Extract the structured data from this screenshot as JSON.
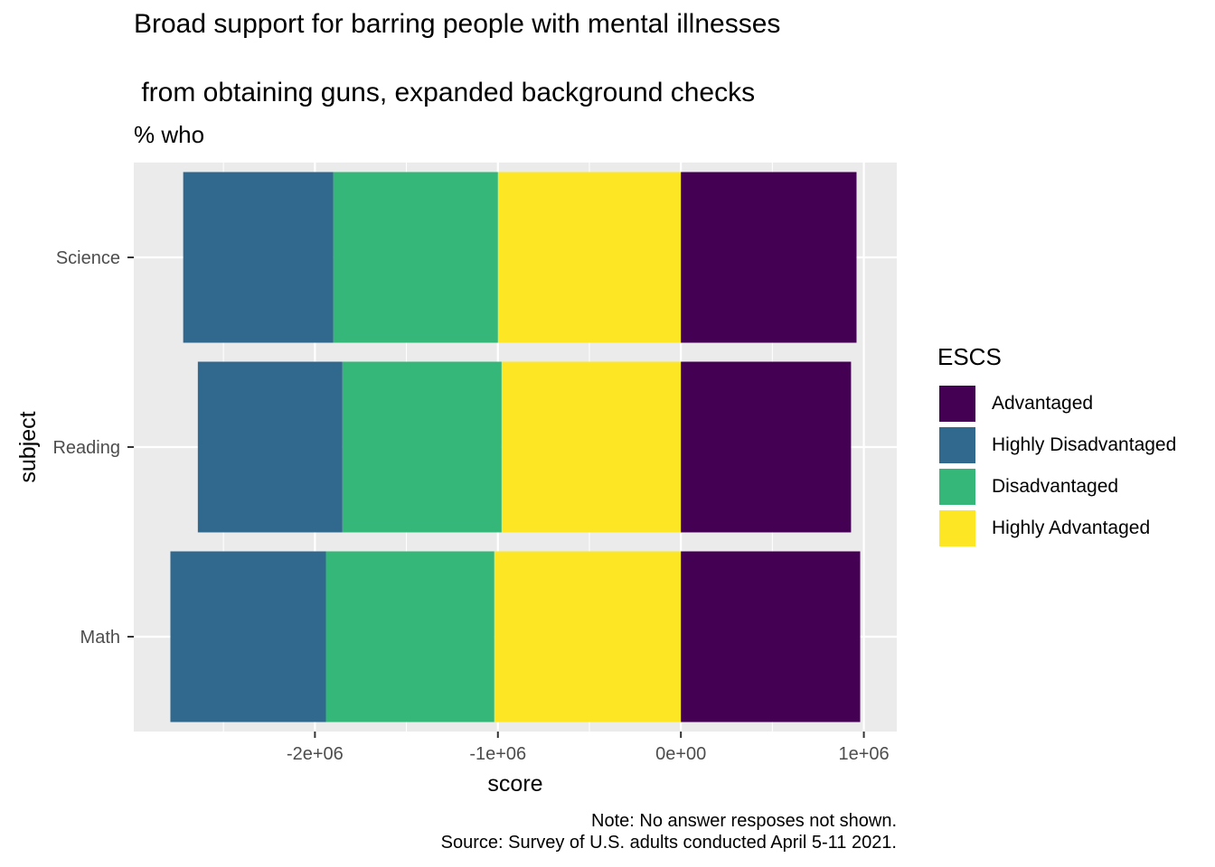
{
  "chart_data": {
    "type": "bar",
    "orientation": "horizontal",
    "stacked": "diverging",
    "title_lines": [
      "Broad support for barring people with mental illnesses",
      " from obtaining guns, expanded background checks"
    ],
    "subtitle": "% who",
    "xlabel": "score",
    "ylabel": "subject",
    "categories": [
      "Math",
      "Reading",
      "Science"
    ],
    "xlim": [
      -2990000,
      1180000
    ],
    "x_ticks": [
      {
        "value": -2000000,
        "label": "-2e+06"
      },
      {
        "value": -1000000,
        "label": "-1e+06"
      },
      {
        "value": 0,
        "label": "0e+00"
      },
      {
        "value": 1000000,
        "label": "1e+06"
      }
    ],
    "series": [
      {
        "name": "Advantaged",
        "color": "#440154",
        "values": [
          980000,
          930000,
          960000
        ]
      },
      {
        "name": "Highly Disadvantaged",
        "color": "#31688E",
        "values": [
          -850000,
          -790000,
          -820000
        ]
      },
      {
        "name": "Disadvantaged",
        "color": "#35B779",
        "values": [
          -920000,
          -870000,
          -900000
        ]
      },
      {
        "name": "Highly Advantaged",
        "color": "#FDE725",
        "values": [
          -1020000,
          -980000,
          -1000000
        ]
      }
    ],
    "stack_order_from_zero": [
      "Highly Advantaged",
      "Disadvantaged",
      "Highly Disadvantaged"
    ],
    "grid": true,
    "panel_background": "#EBEBEB",
    "legend": {
      "title": "ESCS",
      "position": "right"
    },
    "caption_lines": [
      "Note: No answer resposes not shown.",
      "Source: Survey of U.S. adults conducted April 5-11 2021."
    ]
  }
}
